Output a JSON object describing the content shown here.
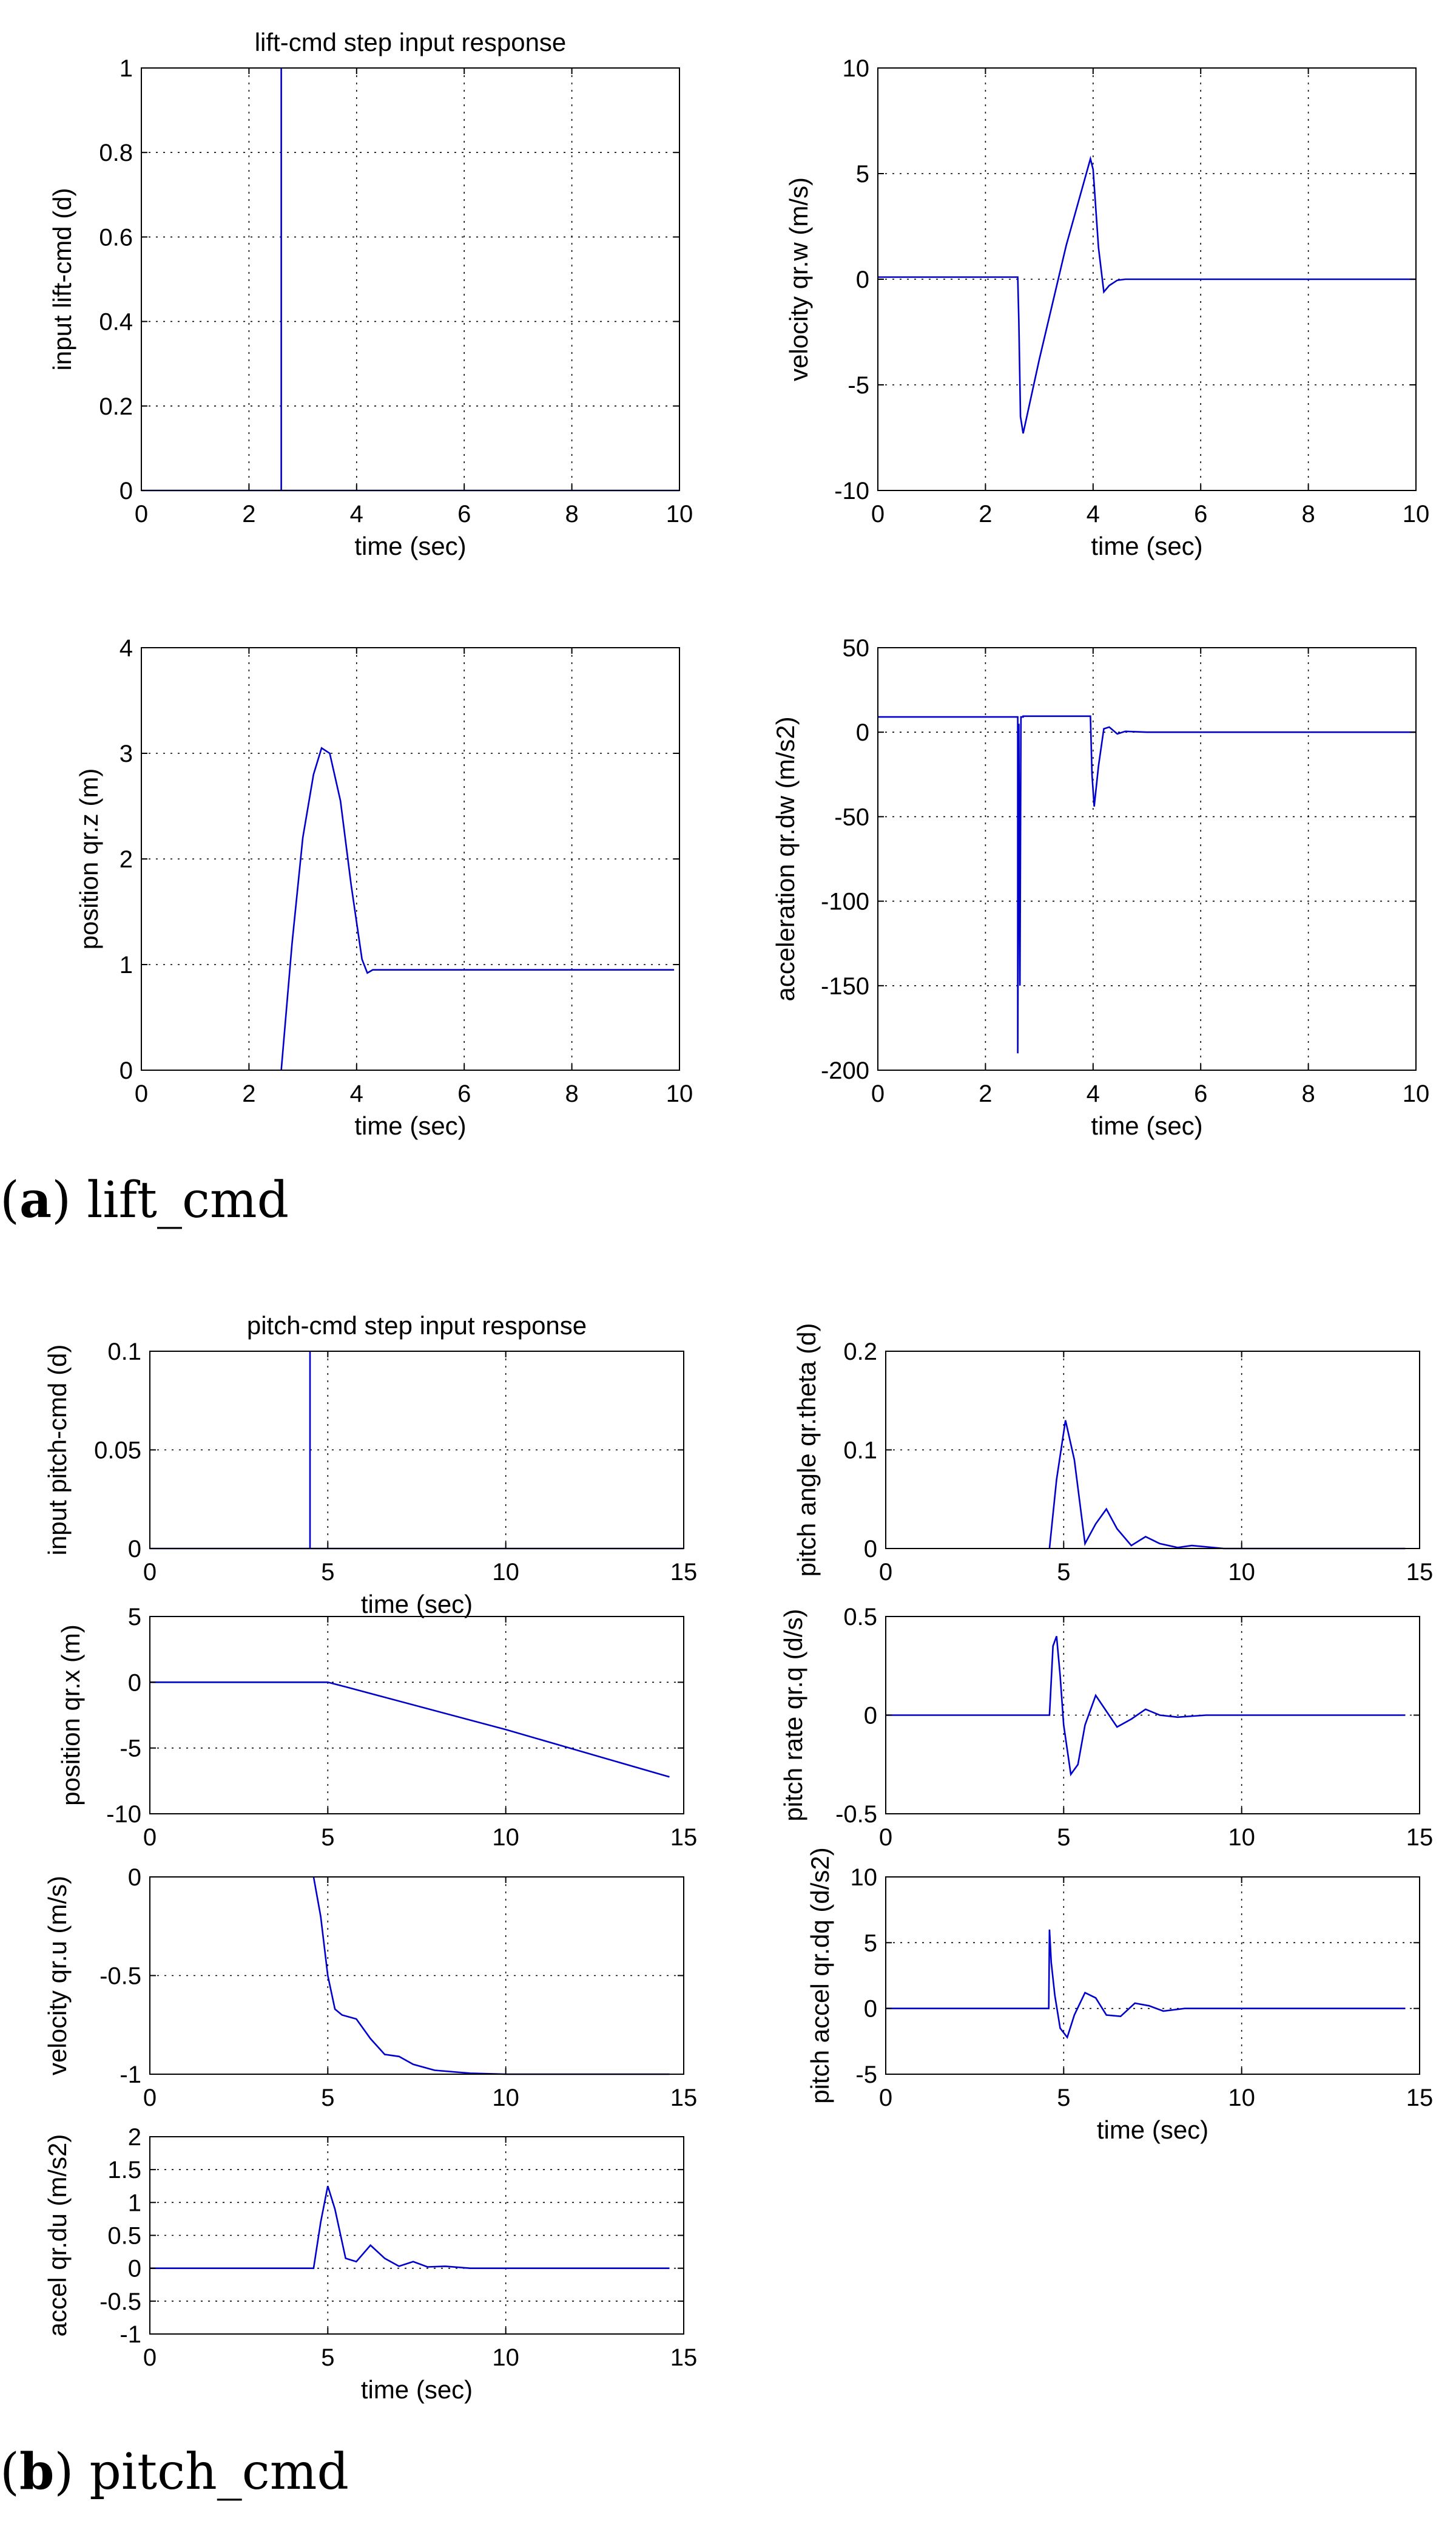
{
  "captions": [
    {
      "letter": "a",
      "text": "lift_cmd"
    },
    {
      "letter": "b",
      "text": "pitch_cmd"
    }
  ],
  "colors": {
    "series": "#0000cc",
    "axis": "#000000",
    "background": "#ffffff"
  },
  "chart_data": [
    {
      "id": "a1",
      "type": "line",
      "title": "lift-cmd step input response",
      "xlabel": "time (sec)",
      "ylabel": "input lift-cmd (d)",
      "xlim": [
        0,
        10
      ],
      "ylim": [
        0,
        1
      ],
      "xticks": [
        0,
        2,
        4,
        6,
        8,
        10
      ],
      "yticks": [
        0,
        0.2,
        0.4,
        0.6,
        0.8,
        1
      ],
      "xticklabels": [
        "0",
        "2",
        "4",
        "6",
        "8",
        "10"
      ],
      "yticklabels": [
        "0",
        "0.2",
        "0.4",
        "0.6",
        "0.8",
        "1"
      ],
      "grid": true,
      "series": [
        {
          "name": "lift-cmd",
          "x": [
            0,
            2.6,
            2.6,
            2.6,
            2.6,
            10
          ],
          "y": [
            0,
            0,
            1,
            1,
            0,
            0
          ]
        }
      ]
    },
    {
      "id": "a2",
      "type": "line",
      "title": "",
      "xlabel": "time (sec)",
      "ylabel": "velocity qr.w (m/s)",
      "xlim": [
        0,
        10
      ],
      "ylim": [
        -10,
        10
      ],
      "xticks": [
        0,
        2,
        4,
        6,
        8,
        10
      ],
      "yticks": [
        -10,
        -5,
        0,
        5,
        10
      ],
      "xticklabels": [
        "0",
        "2",
        "4",
        "6",
        "8",
        "10"
      ],
      "yticklabels": [
        "-10",
        "-5",
        "0",
        "5",
        "10"
      ],
      "grid": true,
      "series": [
        {
          "name": "qr.w",
          "x": [
            0,
            2.6,
            2.62,
            2.65,
            2.7,
            3.0,
            3.5,
            3.95,
            4.0,
            4.1,
            4.2,
            4.3,
            4.45,
            4.6,
            10
          ],
          "y": [
            0.1,
            0.1,
            -2,
            -6.5,
            -7.3,
            -3.8,
            1.6,
            5.7,
            5.2,
            1.5,
            -0.6,
            -0.3,
            -0.05,
            0,
            0
          ]
        }
      ]
    },
    {
      "id": "a3",
      "type": "line",
      "title": "",
      "xlabel": "time (sec)",
      "ylabel": "position qr.z (m)",
      "xlim": [
        0,
        10
      ],
      "ylim": [
        0,
        4
      ],
      "xticks": [
        0,
        2,
        4,
        6,
        8,
        10
      ],
      "yticks": [
        0,
        1,
        2,
        3,
        4
      ],
      "xticklabels": [
        "0",
        "2",
        "4",
        "6",
        "8",
        "10"
      ],
      "yticklabels": [
        "0",
        "1",
        "2",
        "3",
        "4"
      ],
      "grid": true,
      "series": [
        {
          "name": "qr.z",
          "x": [
            2.6,
            2.8,
            3.0,
            3.2,
            3.35,
            3.5,
            3.7,
            3.9,
            4.1,
            4.2,
            4.3,
            4.5,
            5,
            9.9
          ],
          "y": [
            0,
            1.2,
            2.2,
            2.8,
            3.05,
            3.0,
            2.55,
            1.75,
            1.05,
            0.92,
            0.95,
            0.95,
            0.95,
            0.95
          ]
        }
      ]
    },
    {
      "id": "a4",
      "type": "line",
      "title": "",
      "xlabel": "time (sec)",
      "ylabel": "acceleration qr.dw (m/s2)",
      "xlim": [
        0,
        10
      ],
      "ylim": [
        -200,
        50
      ],
      "xticks": [
        0,
        2,
        4,
        6,
        8,
        10
      ],
      "yticks": [
        -200,
        -150,
        -100,
        -50,
        0,
        50
      ],
      "xticklabels": [
        "0",
        "2",
        "4",
        "6",
        "8",
        "10"
      ],
      "yticklabels": [
        "-200",
        "-150",
        "-100",
        "-50",
        "0",
        "50"
      ],
      "grid": true,
      "series": [
        {
          "name": "qr.dw",
          "x": [
            0,
            2.58,
            2.6,
            2.6,
            2.62,
            2.64,
            2.66,
            2.7,
            2.7,
            3.95,
            3.98,
            4.02,
            4.1,
            4.2,
            4.3,
            4.45,
            4.6,
            5,
            6,
            10
          ],
          "y": [
            9,
            9,
            9,
            -190,
            5,
            -150,
            9,
            9,
            9.5,
            9.5,
            -25,
            -44,
            -20,
            2,
            3,
            -1,
            0.5,
            0,
            0,
            0
          ]
        }
      ]
    },
    {
      "id": "b1",
      "type": "line",
      "title": "pitch-cmd step input response",
      "xlabel": "time (sec)",
      "ylabel": "input pitch-cmd (d)",
      "xlim": [
        0,
        15
      ],
      "ylim": [
        0,
        0.1
      ],
      "xticks": [
        0,
        5,
        10,
        15
      ],
      "yticks": [
        0,
        0.05,
        0.1
      ],
      "xticklabels": [
        "0",
        "5",
        "10",
        "15"
      ],
      "yticklabels": [
        "0",
        "0.05",
        "0.1"
      ],
      "grid": true,
      "series": [
        {
          "name": "pitch-cmd",
          "x": [
            0,
            4.5,
            4.5,
            4.5,
            4.5,
            15
          ],
          "y": [
            0,
            0,
            0.1,
            0.1,
            0,
            0
          ]
        }
      ]
    },
    {
      "id": "b2",
      "type": "line",
      "title": "",
      "xlabel": "",
      "ylabel": "position qr.x (m)",
      "xlim": [
        0,
        15
      ],
      "ylim": [
        -10,
        5
      ],
      "xticks": [
        0,
        5,
        10,
        15
      ],
      "yticks": [
        -10,
        -5,
        0,
        5
      ],
      "xticklabels": [
        "0",
        "5",
        "10",
        "15"
      ],
      "yticklabels": [
        "-10",
        "-5",
        "0",
        "5"
      ],
      "grid": true,
      "series": [
        {
          "name": "qr.x",
          "x": [
            0,
            5,
            5.5,
            10,
            14.6
          ],
          "y": [
            0,
            0,
            -0.35,
            -3.6,
            -7.2
          ]
        }
      ]
    },
    {
      "id": "b3",
      "type": "line",
      "title": "",
      "xlabel": "",
      "ylabel": "velocity qr.u (m/s)",
      "xlim": [
        0,
        15
      ],
      "ylim": [
        -1,
        0
      ],
      "xticks": [
        0,
        5,
        10,
        15
      ],
      "yticks": [
        -1,
        -0.5,
        0
      ],
      "xticklabels": [
        "0",
        "5",
        "10",
        "15"
      ],
      "yticklabels": [
        "-1",
        "-0.5",
        "0"
      ],
      "grid": true,
      "series": [
        {
          "name": "qr.u",
          "x": [
            4.6,
            4.8,
            5.0,
            5.2,
            5.4,
            5.8,
            6.2,
            6.6,
            7.0,
            7.4,
            8,
            9,
            10,
            14.6
          ],
          "y": [
            0,
            -0.2,
            -0.5,
            -0.67,
            -0.7,
            -0.72,
            -0.82,
            -0.9,
            -0.91,
            -0.95,
            -0.98,
            -0.995,
            -1,
            -1
          ]
        }
      ]
    },
    {
      "id": "b4",
      "type": "line",
      "title": "",
      "xlabel": "time (sec)",
      "ylabel": "accel qr.du (m/s2)",
      "xlim": [
        0,
        15
      ],
      "ylim": [
        -1,
        2
      ],
      "xticks": [
        0,
        5,
        10,
        15
      ],
      "yticks": [
        -1,
        -0.5,
        0,
        0.5,
        1,
        1.5,
        2
      ],
      "xticklabels": [
        "0",
        "5",
        "10",
        "15"
      ],
      "yticklabels": [
        "-1",
        "-0.5",
        "0",
        "0.5",
        "1",
        "1.5",
        "2"
      ],
      "grid": true,
      "series": [
        {
          "name": "qr.du",
          "x": [
            0,
            4.6,
            4.8,
            5.0,
            5.2,
            5.5,
            5.8,
            6.2,
            6.6,
            7.0,
            7.4,
            7.8,
            8.3,
            9,
            14.6
          ],
          "y": [
            0,
            0,
            0.7,
            1.25,
            0.9,
            0.15,
            0.1,
            0.35,
            0.15,
            0.03,
            0.1,
            0.02,
            0.03,
            0,
            0
          ]
        }
      ]
    },
    {
      "id": "b5",
      "type": "line",
      "title": "",
      "xlabel": "",
      "ylabel": "pitch angle qr.theta (d)",
      "xlim": [
        0,
        15
      ],
      "ylim": [
        0,
        0.2
      ],
      "xticks": [
        0,
        5,
        10,
        15
      ],
      "yticks": [
        0,
        0.1,
        0.2
      ],
      "xticklabels": [
        "0",
        "5",
        "10",
        "15"
      ],
      "yticklabels": [
        "0",
        "0.1",
        "0.2"
      ],
      "grid": true,
      "series": [
        {
          "name": "qr.theta",
          "x": [
            4.6,
            4.8,
            5.05,
            5.3,
            5.6,
            5.9,
            6.2,
            6.5,
            6.9,
            7.3,
            7.7,
            8.2,
            8.6,
            9.5,
            14.6
          ],
          "y": [
            0,
            0.07,
            0.13,
            0.09,
            0.005,
            0.025,
            0.04,
            0.02,
            0.003,
            0.012,
            0.005,
            0.001,
            0.003,
            0,
            0
          ]
        }
      ]
    },
    {
      "id": "b6",
      "type": "line",
      "title": "",
      "xlabel": "",
      "ylabel": "pitch rate qr.q (d/s)",
      "xlim": [
        0,
        15
      ],
      "ylim": [
        -0.5,
        0.5
      ],
      "xticks": [
        0,
        5,
        10,
        15
      ],
      "yticks": [
        -0.5,
        0,
        0.5
      ],
      "xticklabels": [
        "0",
        "5",
        "10",
        "15"
      ],
      "yticklabels": [
        "-0.5",
        "0",
        "0.5"
      ],
      "grid": true,
      "series": [
        {
          "name": "qr.q",
          "x": [
            0,
            4.6,
            4.7,
            4.8,
            4.9,
            5.0,
            5.2,
            5.4,
            5.6,
            5.9,
            6.2,
            6.5,
            6.9,
            7.3,
            7.7,
            8.2,
            9,
            14.6
          ],
          "y": [
            0,
            0,
            0.35,
            0.4,
            0.2,
            -0.05,
            -0.3,
            -0.25,
            -0.05,
            0.1,
            0.02,
            -0.06,
            -0.02,
            0.03,
            0,
            -0.01,
            0,
            0
          ]
        }
      ]
    },
    {
      "id": "b7",
      "type": "line",
      "title": "",
      "xlabel": "time (sec)",
      "ylabel": "pitch accel qr.dq (d/s2)",
      "xlim": [
        0,
        15
      ],
      "ylim": [
        -5,
        10
      ],
      "xticks": [
        0,
        5,
        10,
        15
      ],
      "yticks": [
        -5,
        0,
        5,
        10
      ],
      "xticklabels": [
        "0",
        "5",
        "10",
        "15"
      ],
      "yticklabels": [
        "-5",
        "0",
        "5",
        "10"
      ],
      "grid": true,
      "series": [
        {
          "name": "qr.dq",
          "x": [
            0,
            4.58,
            4.6,
            4.65,
            4.75,
            4.9,
            5.1,
            5.3,
            5.6,
            5.9,
            6.2,
            6.6,
            7.0,
            7.4,
            7.8,
            8.4,
            9,
            14.6
          ],
          "y": [
            0,
            0,
            6,
            3.5,
            1,
            -1.5,
            -2.2,
            -0.5,
            1.2,
            0.8,
            -0.5,
            -0.6,
            0.4,
            0.2,
            -0.2,
            0,
            0,
            0
          ]
        }
      ]
    }
  ]
}
